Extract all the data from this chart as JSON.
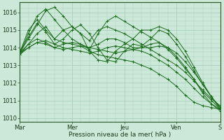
{
  "background_color": "#cce8d8",
  "grid_color": "#aacfbe",
  "line_color": "#1a6b1a",
  "xlabel": "Pression niveau de la mer( hPa )",
  "ylim": [
    1009.8,
    1016.6
  ],
  "yticks": [
    1010,
    1011,
    1012,
    1013,
    1014,
    1015,
    1016
  ],
  "xtick_labels": [
    "Mar",
    "Mer",
    "Jeu",
    "Ven",
    "S"
  ],
  "xtick_positions": [
    0,
    6,
    12,
    18,
    23
  ],
  "n_points": 24,
  "series": [
    [
      1013.7,
      1014.2,
      1014.8,
      1015.2,
      1014.5,
      1014.3,
      1014.2,
      1014.1,
      1013.8,
      1013.6,
      1013.5,
      1013.4,
      1013.3,
      1013.2,
      1013.0,
      1012.8,
      1012.5,
      1012.2,
      1011.8,
      1011.3,
      1010.9,
      1010.7,
      1010.6,
      1010.5
    ],
    [
      1013.7,
      1014.5,
      1015.3,
      1016.1,
      1016.3,
      1015.8,
      1015.2,
      1014.8,
      1014.4,
      1015.0,
      1015.2,
      1015.0,
      1014.8,
      1014.5,
      1014.2,
      1013.9,
      1013.6,
      1013.3,
      1013.0,
      1012.6,
      1012.1,
      1011.6,
      1011.1,
      1010.7
    ],
    [
      1013.6,
      1014.8,
      1015.8,
      1016.2,
      1015.6,
      1015.0,
      1014.5,
      1014.2,
      1013.9,
      1014.8,
      1015.5,
      1015.8,
      1015.5,
      1015.2,
      1014.9,
      1014.6,
      1014.3,
      1013.9,
      1013.4,
      1012.8,
      1012.2,
      1011.5,
      1011.0,
      1010.5
    ],
    [
      1013.6,
      1014.0,
      1014.3,
      1014.4,
      1014.2,
      1014.0,
      1013.9,
      1013.8,
      1013.7,
      1013.8,
      1014.0,
      1014.1,
      1014.0,
      1013.9,
      1013.8,
      1013.6,
      1013.3,
      1013.0,
      1012.6,
      1012.2,
      1011.7,
      1011.2,
      1010.8,
      1010.5
    ],
    [
      1013.8,
      1014.6,
      1015.4,
      1014.9,
      1014.2,
      1014.5,
      1015.0,
      1015.3,
      1014.8,
      1014.0,
      1013.3,
      1013.2,
      1013.8,
      1014.2,
      1014.1,
      1014.5,
      1015.0,
      1014.8,
      1014.2,
      1013.5,
      1012.7,
      1011.9,
      1011.2,
      1010.6
    ],
    [
      1013.7,
      1015.0,
      1015.6,
      1015.0,
      1014.5,
      1015.0,
      1015.2,
      1014.8,
      1013.8,
      1013.3,
      1013.2,
      1013.8,
      1014.2,
      1014.5,
      1015.0,
      1015.0,
      1015.2,
      1015.0,
      1014.5,
      1013.8,
      1012.9,
      1012.0,
      1011.2,
      1010.6
    ],
    [
      1013.7,
      1014.0,
      1014.3,
      1014.2,
      1014.0,
      1013.9,
      1014.0,
      1014.1,
      1014.0,
      1013.9,
      1013.8,
      1013.7,
      1013.8,
      1013.9,
      1014.0,
      1014.0,
      1014.1,
      1014.0,
      1013.7,
      1013.2,
      1012.6,
      1011.9,
      1011.2,
      1010.5
    ],
    [
      1013.6,
      1014.2,
      1014.5,
      1014.3,
      1014.0,
      1014.2,
      1014.3,
      1014.2,
      1014.0,
      1014.2,
      1014.5,
      1014.5,
      1014.3,
      1014.0,
      1014.0,
      1014.2,
      1014.3,
      1014.0,
      1013.5,
      1012.9,
      1012.2,
      1011.4,
      1010.8,
      1010.4
    ]
  ]
}
